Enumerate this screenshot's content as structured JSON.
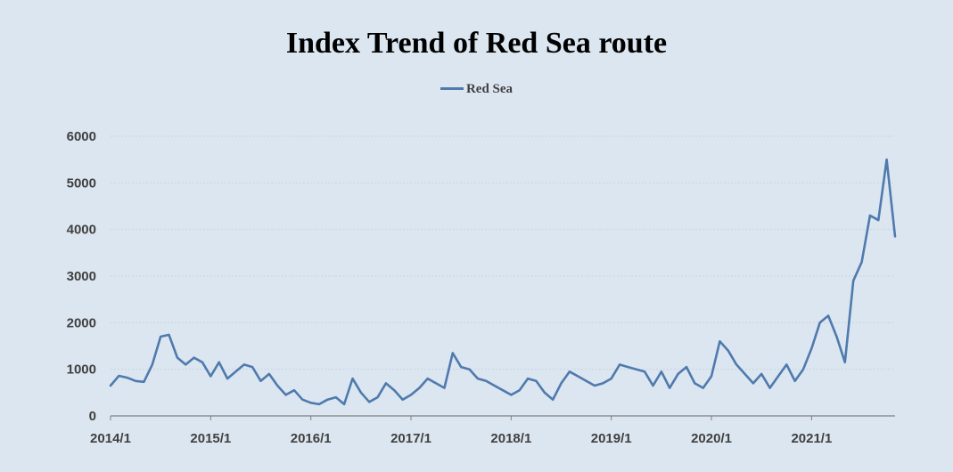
{
  "chart_data": {
    "type": "line",
    "title": "Index Trend of Red Sea route",
    "xlabel": "",
    "ylabel": "",
    "ylim": [
      0,
      6000
    ],
    "yticks": [
      0,
      1000,
      2000,
      3000,
      4000,
      5000,
      6000
    ],
    "xticks": [
      "2014/1",
      "2015/1",
      "2016/1",
      "2017/1",
      "2018/1",
      "2019/1",
      "2020/1",
      "2021/1"
    ],
    "xlim": [
      "2014/1",
      "2021/11"
    ],
    "grid": true,
    "legend": "top-center",
    "series": [
      {
        "name": "Red Sea",
        "color": "#4f7aad",
        "points": [
          [
            "2014/1",
            650
          ],
          [
            "2014/2",
            860
          ],
          [
            "2014/3",
            820
          ],
          [
            "2014/4",
            750
          ],
          [
            "2014/5",
            730
          ],
          [
            "2014/6",
            1100
          ],
          [
            "2014/7",
            1700
          ],
          [
            "2014/8",
            1740
          ],
          [
            "2014/9",
            1250
          ],
          [
            "2014/10",
            1100
          ],
          [
            "2014/11",
            1250
          ],
          [
            "2014/12",
            1150
          ],
          [
            "2015/1",
            850
          ],
          [
            "2015/2",
            1150
          ],
          [
            "2015/3",
            800
          ],
          [
            "2015/4",
            950
          ],
          [
            "2015/5",
            1100
          ],
          [
            "2015/6",
            1050
          ],
          [
            "2015/7",
            750
          ],
          [
            "2015/8",
            900
          ],
          [
            "2015/9",
            650
          ],
          [
            "2015/10",
            450
          ],
          [
            "2015/11",
            550
          ],
          [
            "2015/12",
            350
          ],
          [
            "2016/1",
            280
          ],
          [
            "2016/2",
            250
          ],
          [
            "2016/3",
            350
          ],
          [
            "2016/4",
            400
          ],
          [
            "2016/5",
            250
          ],
          [
            "2016/6",
            800
          ],
          [
            "2016/7",
            500
          ],
          [
            "2016/8",
            300
          ],
          [
            "2016/9",
            400
          ],
          [
            "2016/10",
            700
          ],
          [
            "2016/11",
            550
          ],
          [
            "2016/12",
            350
          ],
          [
            "2017/1",
            450
          ],
          [
            "2017/2",
            600
          ],
          [
            "2017/3",
            800
          ],
          [
            "2017/4",
            700
          ],
          [
            "2017/5",
            600
          ],
          [
            "2017/6",
            1350
          ],
          [
            "2017/7",
            1050
          ],
          [
            "2017/8",
            1000
          ],
          [
            "2017/9",
            800
          ],
          [
            "2017/10",
            750
          ],
          [
            "2017/11",
            650
          ],
          [
            "2017/12",
            550
          ],
          [
            "2018/1",
            450
          ],
          [
            "2018/2",
            550
          ],
          [
            "2018/3",
            800
          ],
          [
            "2018/4",
            750
          ],
          [
            "2018/5",
            500
          ],
          [
            "2018/6",
            350
          ],
          [
            "2018/7",
            700
          ],
          [
            "2018/8",
            950
          ],
          [
            "2018/9",
            850
          ],
          [
            "2018/10",
            750
          ],
          [
            "2018/11",
            650
          ],
          [
            "2018/12",
            700
          ],
          [
            "2019/1",
            800
          ],
          [
            "2019/2",
            1100
          ],
          [
            "2019/3",
            1050
          ],
          [
            "2019/4",
            1000
          ],
          [
            "2019/5",
            950
          ],
          [
            "2019/6",
            650
          ],
          [
            "2019/7",
            950
          ],
          [
            "2019/8",
            600
          ],
          [
            "2019/9",
            900
          ],
          [
            "2019/10",
            1050
          ],
          [
            "2019/11",
            700
          ],
          [
            "2019/12",
            600
          ],
          [
            "2020/1",
            850
          ],
          [
            "2020/2",
            1600
          ],
          [
            "2020/3",
            1400
          ],
          [
            "2020/4",
            1100
          ],
          [
            "2020/5",
            900
          ],
          [
            "2020/6",
            700
          ],
          [
            "2020/7",
            900
          ],
          [
            "2020/8",
            600
          ],
          [
            "2020/9",
            850
          ],
          [
            "2020/10",
            1100
          ],
          [
            "2020/11",
            750
          ],
          [
            "2020/12",
            1000
          ],
          [
            "2021/1",
            1450
          ],
          [
            "2021/2",
            2000
          ],
          [
            "2021/3",
            2150
          ],
          [
            "2021/4",
            1700
          ],
          [
            "2021/5",
            1150
          ],
          [
            "2021/6",
            2900
          ],
          [
            "2021/7",
            3300
          ],
          [
            "2021/8",
            4300
          ],
          [
            "2021/9",
            4200
          ],
          [
            "2021/10",
            5500
          ],
          [
            "2021/11",
            3850
          ]
        ]
      }
    ]
  }
}
